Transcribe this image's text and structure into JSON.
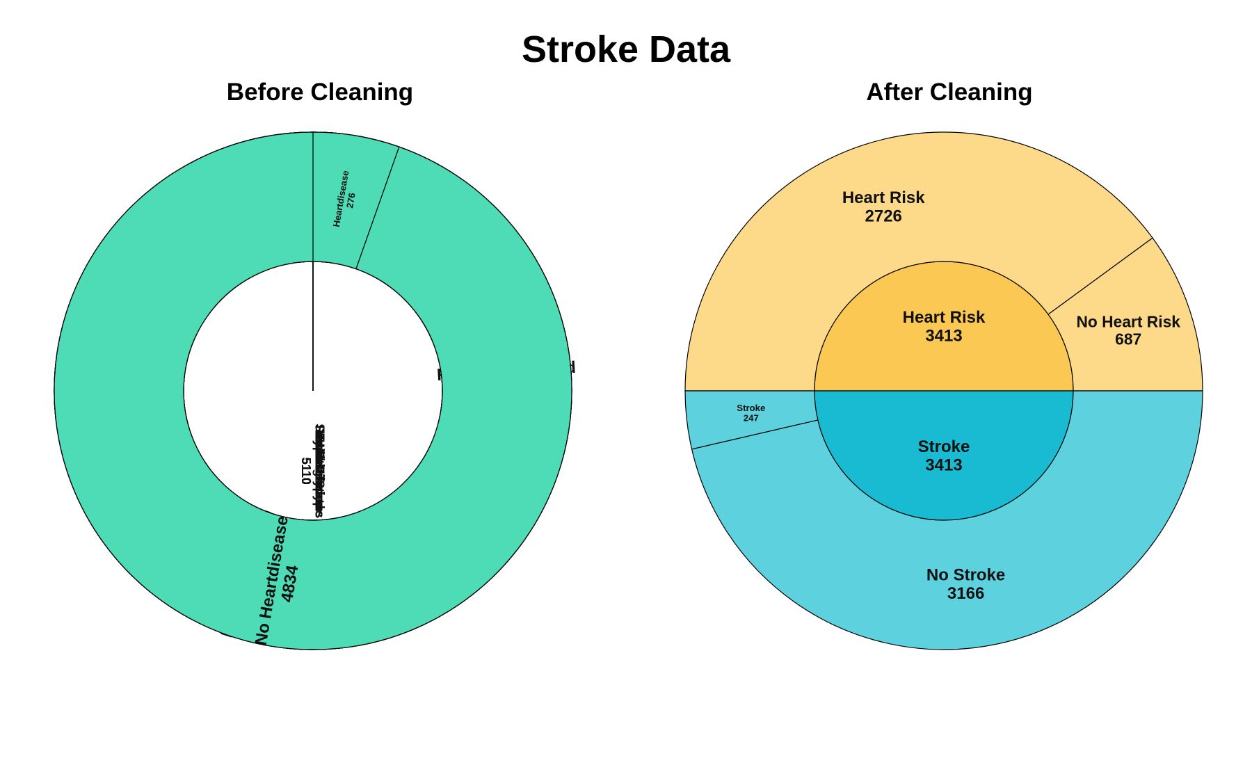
{
  "title": "Stroke Data",
  "chart_data": [
    {
      "type": "sunburst",
      "title": "Before Cleaning",
      "total": 5110,
      "groups": [
        {
          "label": "Gender",
          "value": 5110,
          "color": "#636efa",
          "child_color": "#949bfc",
          "children": [
            {
              "label": "Male",
              "value": 2115
            },
            {
              "label": "Female",
              "value": 2994
            },
            {
              "label": "Other",
              "value": 1
            }
          ]
        },
        {
          "label": "Ever Married",
          "value": 5110,
          "color": "#ab63fa",
          "child_color": "#c59bfc",
          "children": [
            {
              "label": "No",
              "value": 1757
            },
            {
              "label": "Yes",
              "value": 3353
            }
          ]
        },
        {
          "label": "Work Type",
          "value": 5110,
          "color": "#ffa15a",
          "child_color": "#ffbd8c",
          "children": [
            {
              "label": "Govt job",
              "value": 657
            },
            {
              "label": "children",
              "value": 687
            },
            {
              "label": "Never worked",
              "value": 22
            },
            {
              "label": "Self-employed",
              "value": 819
            },
            {
              "label": "Private",
              "value": 2925
            }
          ]
        },
        {
          "label": "Stroke",
          "value": 5110,
          "color": "#19b2c4",
          "child_color": "#5dd0dc",
          "children": [
            {
              "label": "Stroke",
              "value": 249
            },
            {
              "label": "No Stroke",
              "value": 4861
            }
          ]
        },
        {
          "label": "Smoking Status",
          "value": 5110,
          "color": "#ff6692",
          "child_color": "#ff94b3",
          "children": [
            {
              "label": "Smokes",
              "value": 789
            },
            {
              "label": "Formerly smoked",
              "value": 885
            },
            {
              "label": "Unknown",
              "value": 1544
            },
            {
              "label": "Never smoked",
              "value": 1892
            }
          ]
        },
        {
          "label": "Residence type",
          "value": 5110,
          "color": "#19d3f3",
          "child_color": "#5fe0f6",
          "children": [
            {
              "label": "Rural",
              "value": 2514
            },
            {
              "label": "Urban",
              "value": 2596
            }
          ]
        },
        {
          "label": "Hypertension",
          "value": 5110,
          "color": "#ef553b",
          "child_color": "#f4887a",
          "children": [
            {
              "label": "Hypertension",
              "value": 498
            },
            {
              "label": "No Hypertension",
              "value": 4612
            }
          ]
        },
        {
          "label": "Heart Disease",
          "value": 5110,
          "color": "#00cc96",
          "child_color": "#4ddcb5",
          "children": [
            {
              "label": "Heartdisease",
              "value": 276
            },
            {
              "label": "No Heartdisease",
              "value": 4834
            }
          ]
        }
      ]
    },
    {
      "type": "sunburst",
      "title": "After Cleaning",
      "total": 6826,
      "groups": [
        {
          "label": "Heart Risk",
          "value": 3413,
          "color": "#fbc853",
          "child_color": "#fdd98a",
          "children": [
            {
              "label": "Heart Risk",
              "value": 2726
            },
            {
              "label": "No Heart Risk",
              "value": 687
            }
          ]
        },
        {
          "label": "Stroke",
          "value": 3413,
          "color": "#19bbd2",
          "child_color": "#5dd1de",
          "children": [
            {
              "label": "No Stroke",
              "value": 3166
            },
            {
              "label": "Stroke",
              "value": 247
            }
          ]
        }
      ]
    }
  ]
}
